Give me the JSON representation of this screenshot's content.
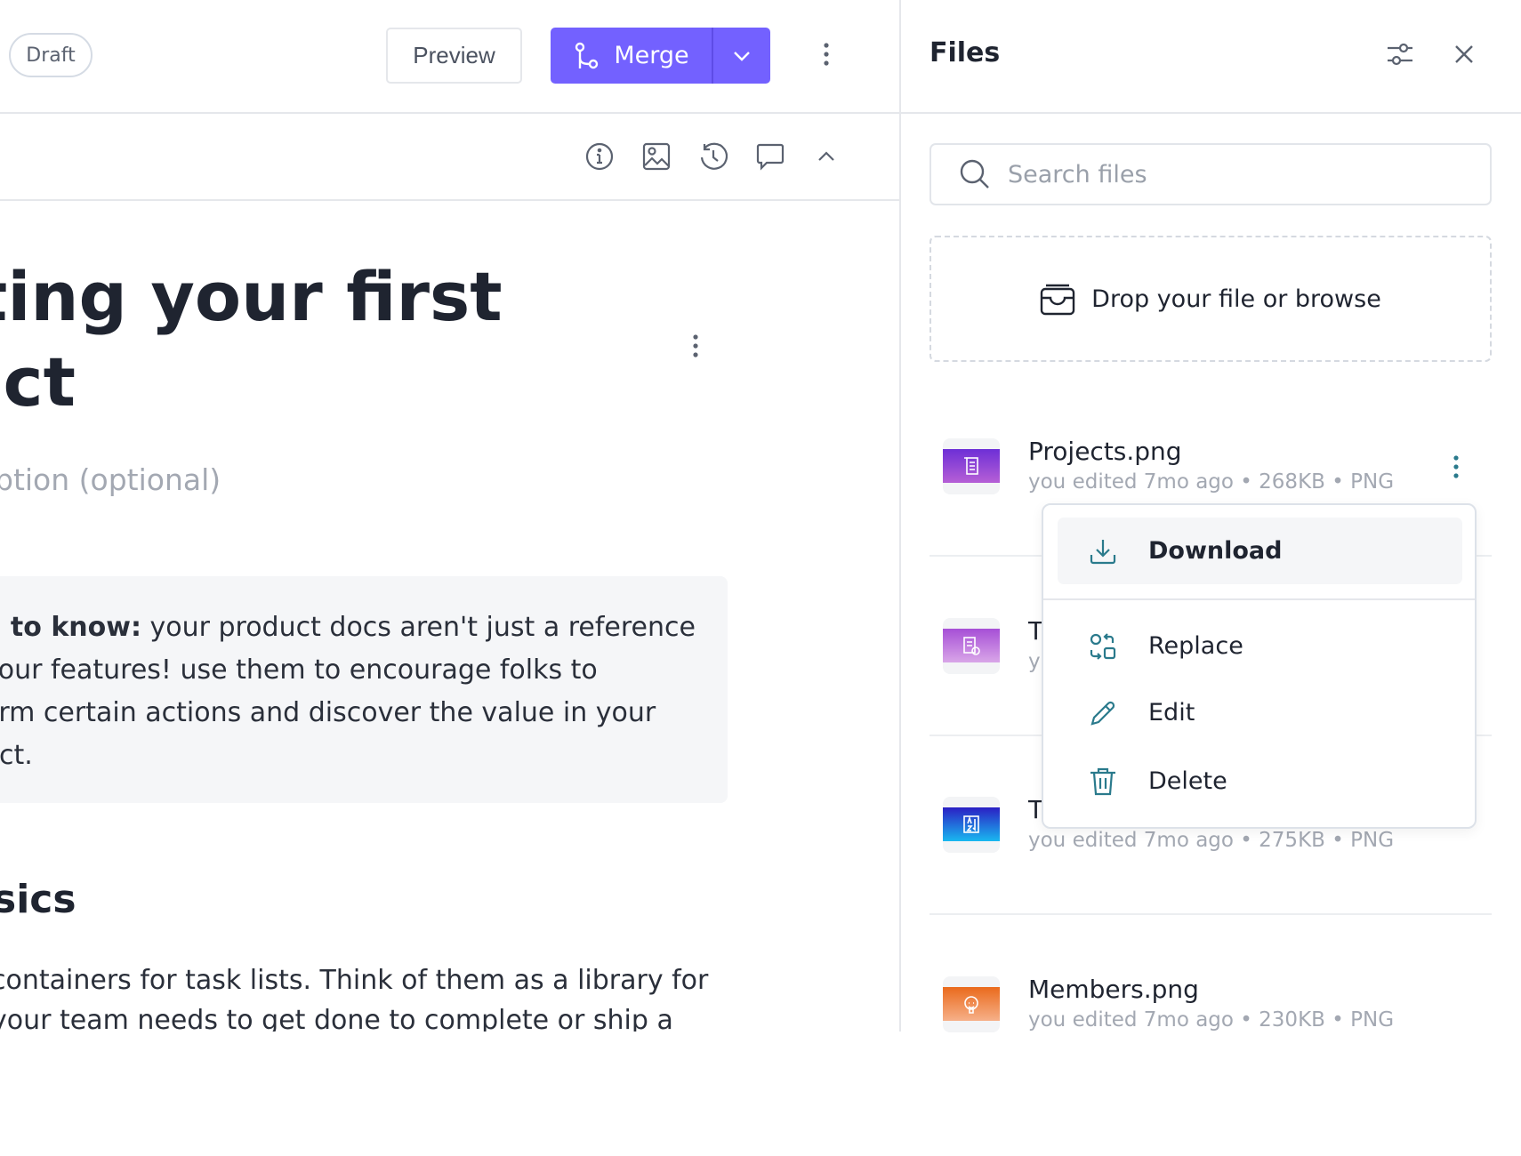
{
  "header": {
    "status_badge": "Draft",
    "preview_label": "Preview",
    "merge_label": "Merge"
  },
  "toolbar": {
    "icons": [
      "info-icon",
      "image-icon",
      "history-icon",
      "comment-icon",
      "chevron-up-icon"
    ]
  },
  "document": {
    "title_lines": [
      "ting your first",
      "ect"
    ],
    "description_placeholder": "ption (optional)",
    "callout": {
      "bold": "d to know:",
      "lines": [
        " your product docs aren't just a reference",
        "  your features! use them to encourage folks to",
        "orm certain actions and discover the value in your",
        "uct."
      ]
    },
    "heading": "sics",
    "paragraph_lines": [
      " containers for task lists. Think of them as a library for",
      "your team needs to get done to complete or ship a"
    ]
  },
  "files_panel": {
    "title": "Files",
    "search_placeholder": "Search files",
    "drop_label": "Drop your file or browse",
    "files": [
      {
        "name": "Projects.png",
        "meta": "you edited 7mo ago • 268KB • PNG",
        "gradient": [
          "#6d2fd6",
          "#b65fd6"
        ]
      },
      {
        "name": "T",
        "meta": "y",
        "gradient": [
          "#a64fd6",
          "#d9a6e8"
        ]
      },
      {
        "name": "T",
        "meta": "you edited 7mo ago • 275KB • PNG",
        "gradient": [
          "#2b1fc4",
          "#19b8f0"
        ]
      },
      {
        "name": "Members.png",
        "meta": "you edited 7mo ago • 230KB • PNG",
        "gradient": [
          "#ea6a1c",
          "#f6b089"
        ]
      }
    ],
    "context_menu": {
      "items": [
        {
          "label": "Download",
          "icon": "download-icon"
        },
        {
          "label": "Replace",
          "icon": "replace-icon"
        },
        {
          "label": "Edit",
          "icon": "pencil-icon"
        },
        {
          "label": "Delete",
          "icon": "trash-icon"
        }
      ]
    }
  },
  "colors": {
    "accent": "#7361ff",
    "menu_icon": "#2a7a8c",
    "muted_text": "#a3a8b2"
  }
}
